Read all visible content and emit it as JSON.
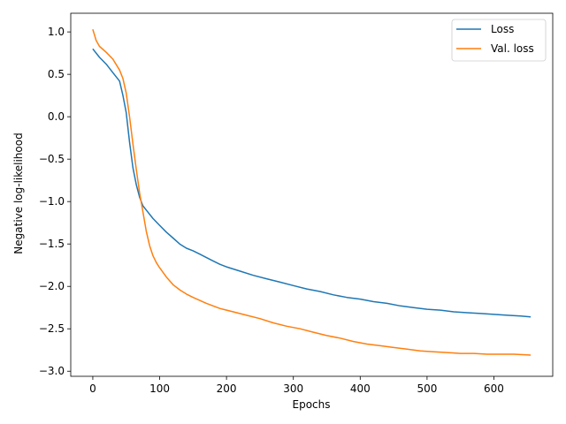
{
  "chart_data": {
    "type": "line",
    "xlabel": "Epochs",
    "ylabel": "Negative log-likelihood",
    "xlim": [
      -33,
      688
    ],
    "ylim": [
      -3.06,
      1.22
    ],
    "x_ticks": [
      0,
      100,
      200,
      300,
      400,
      500,
      600
    ],
    "x_tick_labels": [
      "0",
      "100",
      "200",
      "300",
      "400",
      "500",
      "600"
    ],
    "y_ticks": [
      1.0,
      0.5,
      0.0,
      -0.5,
      -1.0,
      -1.5,
      -2.0,
      -2.5,
      -3.0
    ],
    "y_tick_labels": [
      "1.0",
      "0.5",
      "0.0",
      "−0.5",
      "−1.0",
      "−1.5",
      "−2.0",
      "−2.5",
      "−3.0"
    ],
    "grid": false,
    "legend_position": "top-right",
    "series": [
      {
        "name": "Loss",
        "color": "#1f77b4",
        "x": [
          0,
          10,
          20,
          30,
          40,
          45,
          50,
          55,
          60,
          65,
          70,
          75,
          80,
          90,
          100,
          110,
          120,
          130,
          140,
          150,
          160,
          170,
          180,
          190,
          200,
          220,
          240,
          260,
          280,
          300,
          320,
          340,
          360,
          380,
          400,
          420,
          440,
          460,
          480,
          500,
          520,
          540,
          560,
          580,
          600,
          620,
          640,
          655
        ],
        "y": [
          0.8,
          0.7,
          0.62,
          0.52,
          0.42,
          0.25,
          0.05,
          -0.3,
          -0.6,
          -0.8,
          -0.95,
          -1.05,
          -1.1,
          -1.2,
          -1.28,
          -1.36,
          -1.43,
          -1.5,
          -1.55,
          -1.58,
          -1.62,
          -1.66,
          -1.7,
          -1.74,
          -1.77,
          -1.82,
          -1.87,
          -1.91,
          -1.95,
          -1.99,
          -2.03,
          -2.06,
          -2.1,
          -2.13,
          -2.15,
          -2.18,
          -2.2,
          -2.23,
          -2.25,
          -2.27,
          -2.28,
          -2.3,
          -2.31,
          -2.32,
          -2.33,
          -2.34,
          -2.35,
          -2.36
        ]
      },
      {
        "name": "Val. loss",
        "color": "#ff7f0e",
        "x": [
          0,
          5,
          10,
          20,
          30,
          40,
          45,
          50,
          55,
          60,
          65,
          70,
          75,
          80,
          85,
          90,
          95,
          100,
          110,
          120,
          130,
          140,
          150,
          170,
          190,
          210,
          230,
          250,
          270,
          290,
          310,
          330,
          350,
          370,
          390,
          410,
          430,
          450,
          470,
          490,
          510,
          530,
          550,
          570,
          590,
          610,
          630,
          655
        ],
        "y": [
          1.03,
          0.9,
          0.83,
          0.76,
          0.68,
          0.55,
          0.45,
          0.28,
          0.0,
          -0.32,
          -0.62,
          -0.9,
          -1.12,
          -1.35,
          -1.52,
          -1.64,
          -1.72,
          -1.78,
          -1.89,
          -1.98,
          -2.04,
          -2.09,
          -2.13,
          -2.2,
          -2.26,
          -2.3,
          -2.34,
          -2.38,
          -2.43,
          -2.47,
          -2.5,
          -2.54,
          -2.58,
          -2.61,
          -2.65,
          -2.68,
          -2.7,
          -2.72,
          -2.74,
          -2.76,
          -2.77,
          -2.78,
          -2.79,
          -2.79,
          -2.8,
          -2.8,
          -2.8,
          -2.81
        ]
      }
    ]
  }
}
